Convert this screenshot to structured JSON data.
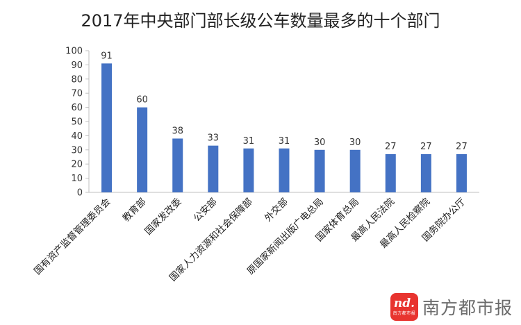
{
  "chart_data": {
    "type": "bar",
    "title": "2017年中央部门部长级公车数量最多的十个部门",
    "categories": [
      "国有资产监督管理委员会",
      "教育部",
      "国家发改委",
      "公安部",
      "国家人力资源和社会保障部",
      "外交部",
      "原国家新闻出版广电总局",
      "国家体育总局",
      "最高人民法院",
      "最高人民检察院",
      "国务院办公厅"
    ],
    "values": [
      91,
      60,
      38,
      33,
      31,
      31,
      30,
      30,
      27,
      27,
      27
    ],
    "data_labels": [
      "91",
      "60",
      "38",
      "33",
      "31",
      "31",
      "30",
      "30",
      "27",
      "27",
      "27"
    ],
    "ylim": [
      0,
      100
    ],
    "yticks": [
      "0",
      "10",
      "20",
      "30",
      "40",
      "50",
      "60",
      "70",
      "80",
      "90",
      "100"
    ],
    "xlabel": "",
    "ylabel": "",
    "grid": false,
    "bar_color": "#4472c4"
  },
  "watermark": {
    "brand_text": "南方都市报",
    "logo_mark": "nd.",
    "logo_sub": "南方都市报"
  }
}
